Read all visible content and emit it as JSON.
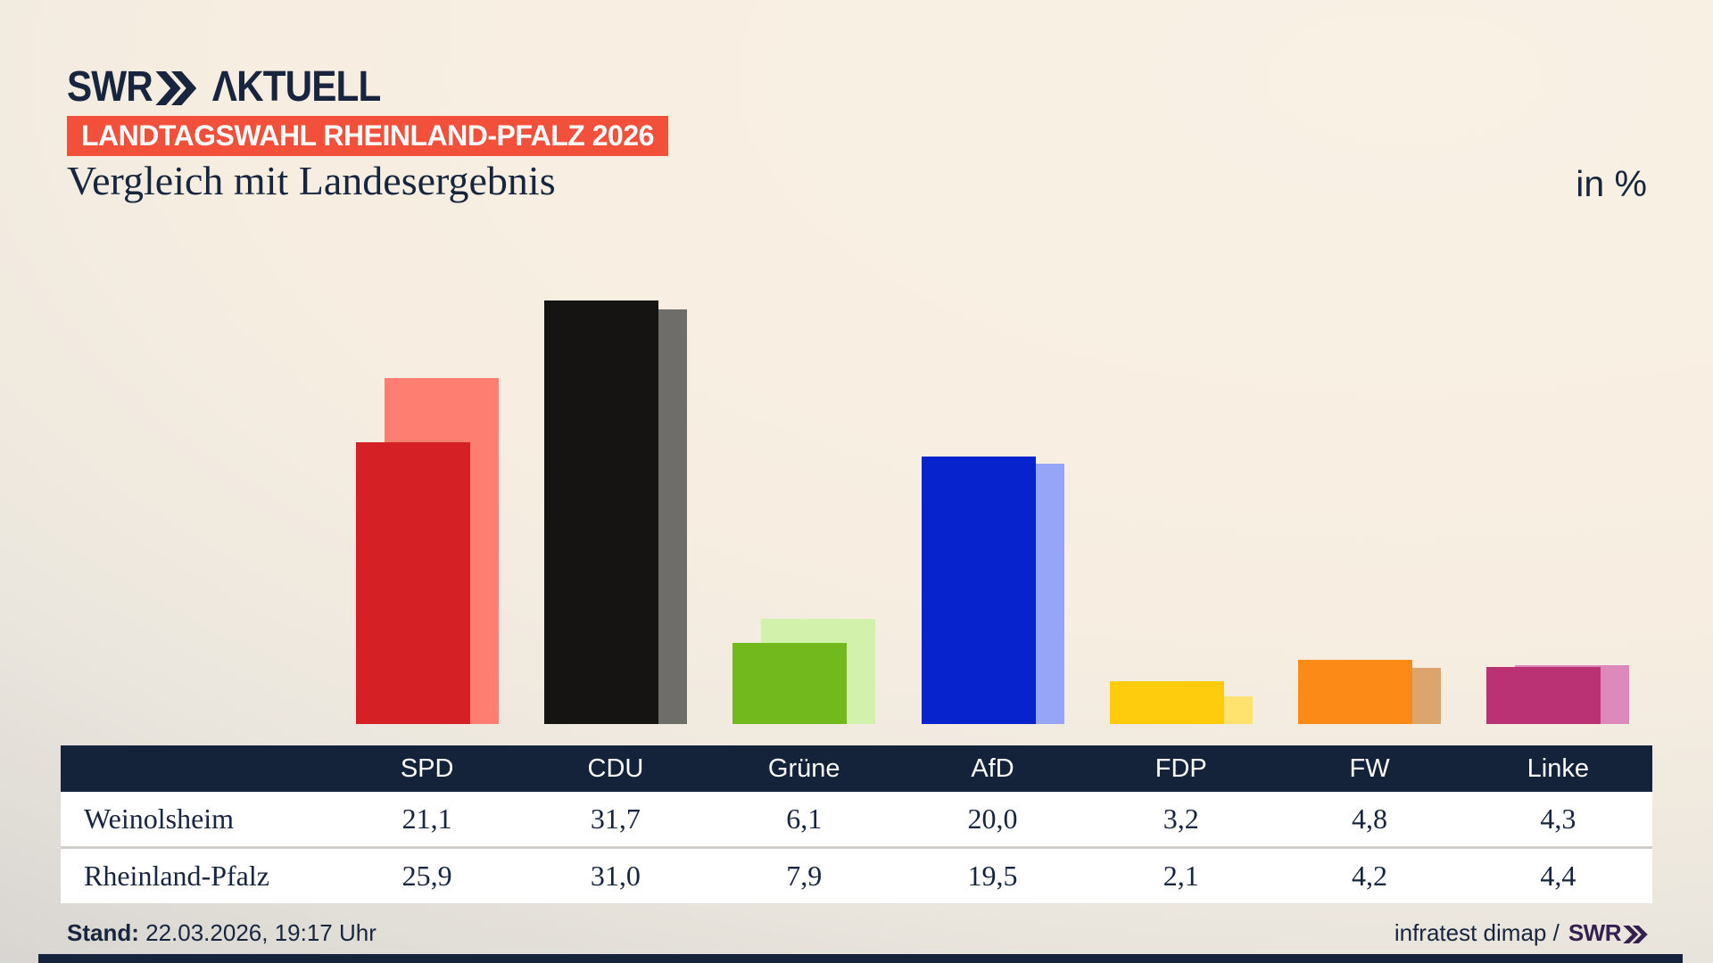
{
  "brand": {
    "swr": "SWR",
    "aktuell": "ΛKTUELL"
  },
  "badge": {
    "label": "LANDTAGSWAHL RHEINLAND-PFALZ 2026",
    "bg": "#f3503c"
  },
  "title": "Vergleich mit Landesergebnis",
  "unit_label": "in %",
  "colors": {
    "navy_text": "#17253e",
    "table_header_bg": "#142339",
    "badge_red": "#f3503c",
    "footer_swr_purple": "#33204e",
    "progress_bar": "#15233c"
  },
  "chart_data": {
    "type": "bar",
    "categories": [
      "SPD",
      "CDU",
      "Grüne",
      "AfD",
      "FDP",
      "FW",
      "Linke"
    ],
    "series": [
      {
        "name": "Weinolsheim",
        "values": [
          21.1,
          31.7,
          6.1,
          20.0,
          3.2,
          4.8,
          4.3
        ],
        "colors": [
          "#d52025",
          "#151413",
          "#72b91e",
          "#0623cd",
          "#ffcb0c",
          "#fc8a17",
          "#bb3274"
        ]
      },
      {
        "name": "Rheinland-Pfalz",
        "values": [
          25.9,
          31.0,
          7.9,
          19.5,
          2.1,
          4.2,
          4.4
        ],
        "colors": [
          "#ff7e72",
          "#6f6d6a",
          "#d2f2ab",
          "#97a5f9",
          "#ffe36e",
          "#dba56d",
          "#db8abb"
        ]
      }
    ],
    "title": "Vergleich mit Landesergebnis",
    "xlabel": "",
    "ylabel": "in %",
    "ylim": [
      0,
      33.5
    ],
    "grid": false,
    "legend_position": "none (values shown in table below)"
  },
  "table": {
    "header": [
      "",
      "SPD",
      "CDU",
      "Grüne",
      "AfD",
      "FDP",
      "FW",
      "Linke"
    ],
    "rows": [
      {
        "label": "Weinolsheim",
        "values": [
          "21,1",
          "31,7",
          "6,1",
          "20,0",
          "3,2",
          "4,8",
          "4,3"
        ]
      },
      {
        "label": "Rheinland-Pfalz",
        "values": [
          "25,9",
          "31,0",
          "7,9",
          "19,5",
          "2,1",
          "4,2",
          "4,4"
        ]
      }
    ]
  },
  "footer": {
    "stand_label": "Stand:",
    "stand_value": " 22.03.2026, 19:17 Uhr",
    "source_text": "infratest dimap /",
    "source_brand": "SWR"
  }
}
